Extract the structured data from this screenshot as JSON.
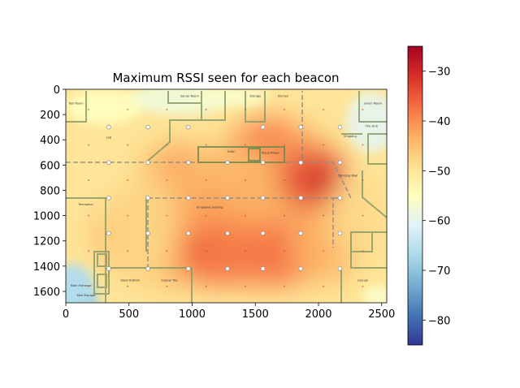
{
  "chart_data": {
    "type": "heatmap",
    "title": "Maximum RSSI seen for each beacon",
    "xlabel": "",
    "ylabel": "",
    "xlim": [
      0,
      2540
    ],
    "ylim": [
      1690,
      0
    ],
    "x_ticks": [
      0,
      500,
      1000,
      1500,
      2000,
      2500
    ],
    "y_ticks": [
      0,
      200,
      400,
      600,
      800,
      1000,
      1200,
      1400,
      1600
    ],
    "colorbar": {
      "colormap": "RdYlBu_r",
      "vmin": -85,
      "vmax": -25,
      "ticks": [
        -30,
        -40,
        -50,
        -60,
        -70,
        -80
      ]
    },
    "hotspots": [
      {
        "x": 1980,
        "y": 720,
        "rssi": -30
      },
      {
        "x": 1100,
        "y": 1270,
        "rssi": -35
      },
      {
        "x": 1700,
        "y": 1300,
        "rssi": -36
      },
      {
        "x": 1600,
        "y": 400,
        "rssi": -38
      },
      {
        "x": 900,
        "y": 600,
        "rssi": -40
      }
    ],
    "coldspots": [
      {
        "x": 50,
        "y": 1600,
        "rssi": -70
      },
      {
        "x": 900,
        "y": 100,
        "rssi": -60
      },
      {
        "x": 2350,
        "y": 300,
        "rssi": -62
      }
    ],
    "beacons": [
      {
        "x": 340,
        "y": 300
      },
      {
        "x": 650,
        "y": 300
      },
      {
        "x": 970,
        "y": 300
      },
      {
        "x": 1560,
        "y": 300
      },
      {
        "x": 1860,
        "y": 300
      },
      {
        "x": 2170,
        "y": 300
      },
      {
        "x": 340,
        "y": 580
      },
      {
        "x": 650,
        "y": 580
      },
      {
        "x": 970,
        "y": 580
      },
      {
        "x": 1280,
        "y": 580
      },
      {
        "x": 1560,
        "y": 580
      },
      {
        "x": 1860,
        "y": 580
      },
      {
        "x": 2170,
        "y": 580
      },
      {
        "x": 340,
        "y": 860
      },
      {
        "x": 650,
        "y": 860
      },
      {
        "x": 970,
        "y": 860
      },
      {
        "x": 1280,
        "y": 860
      },
      {
        "x": 1560,
        "y": 860
      },
      {
        "x": 1860,
        "y": 860
      },
      {
        "x": 2170,
        "y": 860
      },
      {
        "x": 340,
        "y": 1140
      },
      {
        "x": 650,
        "y": 1140
      },
      {
        "x": 970,
        "y": 1140
      },
      {
        "x": 1280,
        "y": 1140
      },
      {
        "x": 1560,
        "y": 1140
      },
      {
        "x": 1860,
        "y": 1140
      },
      {
        "x": 2170,
        "y": 1140
      },
      {
        "x": 340,
        "y": 1420
      },
      {
        "x": 650,
        "y": 1420
      },
      {
        "x": 970,
        "y": 1420
      },
      {
        "x": 1280,
        "y": 1420
      },
      {
        "x": 1560,
        "y": 1420
      },
      {
        "x": 1860,
        "y": 1420
      },
      {
        "x": 2170,
        "y": 1420
      }
    ],
    "room_labels": [
      {
        "text": "Tool Room",
        "x": 80,
        "y": 120
      },
      {
        "text": "Server Room",
        "x": 980,
        "y": 60
      },
      {
        "text": "Storage",
        "x": 1500,
        "y": 60
      },
      {
        "text": "Kitchen",
        "x": 1720,
        "y": 60
      },
      {
        "text": "Green Room",
        "x": 2430,
        "y": 120
      },
      {
        "text": "Lab",
        "x": 340,
        "y": 390
      },
      {
        "text": "The Hub",
        "x": 2420,
        "y": 300
      },
      {
        "text": "Shipping",
        "x": 2250,
        "y": 380
      },
      {
        "text": "HVAC",
        "x": 1310,
        "y": 500
      },
      {
        "text": "Telco/ Power",
        "x": 1620,
        "y": 510
      },
      {
        "text": "Climbing Wall",
        "x": 2230,
        "y": 690
      },
      {
        "text": "Reception",
        "x": 160,
        "y": 920
      },
      {
        "text": "Employee Seating",
        "x": 1140,
        "y": 940
      },
      {
        "text": "Glass Bottom",
        "x": 510,
        "y": 1520
      },
      {
        "text": "Copper Top",
        "x": 820,
        "y": 1520
      },
      {
        "text": "Lounge",
        "x": 2350,
        "y": 1520
      },
      {
        "text": "Main Entrance",
        "x": 120,
        "y": 1560
      },
      {
        "text": "Bike Storage",
        "x": 160,
        "y": 1640
      }
    ]
  }
}
